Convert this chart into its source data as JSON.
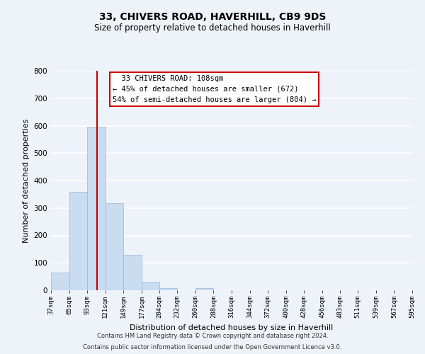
{
  "title": "33, CHIVERS ROAD, HAVERHILL, CB9 9DS",
  "subtitle": "Size of property relative to detached houses in Haverhill",
  "xlabel": "Distribution of detached houses by size in Haverhill",
  "ylabel": "Number of detached properties",
  "bin_edges": [
    37,
    65,
    93,
    121,
    149,
    177,
    204,
    232,
    260,
    288,
    316,
    344,
    372,
    400,
    428,
    456,
    483,
    511,
    539,
    567,
    595
  ],
  "bar_heights": [
    65,
    358,
    597,
    318,
    130,
    30,
    8,
    0,
    8,
    0,
    0,
    0,
    0,
    0,
    0,
    0,
    0,
    0,
    0,
    0
  ],
  "bar_color": "#c9dcf0",
  "bar_edge_color": "#9ab8d8",
  "vline_x": 108,
  "vline_color": "#cc0000",
  "ylim": [
    0,
    800
  ],
  "yticks": [
    0,
    100,
    200,
    300,
    400,
    500,
    600,
    700,
    800
  ],
  "annotation_title": "33 CHIVERS ROAD: 108sqm",
  "annotation_line1": "← 45% of detached houses are smaller (672)",
  "annotation_line2": "54% of semi-detached houses are larger (804) →",
  "annotation_box_facecolor": "#ffffff",
  "annotation_box_edgecolor": "#cc0000",
  "footnote1": "Contains HM Land Registry data © Crown copyright and database right 2024.",
  "footnote2": "Contains public sector information licensed under the Open Government Licence v3.0.",
  "background_color": "#eef2f9",
  "grid_color": "#ffffff",
  "tick_labels": [
    "37sqm",
    "65sqm",
    "93sqm",
    "121sqm",
    "149sqm",
    "177sqm",
    "204sqm",
    "232sqm",
    "260sqm",
    "288sqm",
    "316sqm",
    "344sqm",
    "372sqm",
    "400sqm",
    "428sqm",
    "456sqm",
    "483sqm",
    "511sqm",
    "539sqm",
    "567sqm",
    "595sqm"
  ],
  "title_fontsize": 10,
  "subtitle_fontsize": 8.5,
  "ylabel_fontsize": 8,
  "xlabel_fontsize": 8,
  "footnote_fontsize": 6,
  "annotation_fontsize": 7.5
}
